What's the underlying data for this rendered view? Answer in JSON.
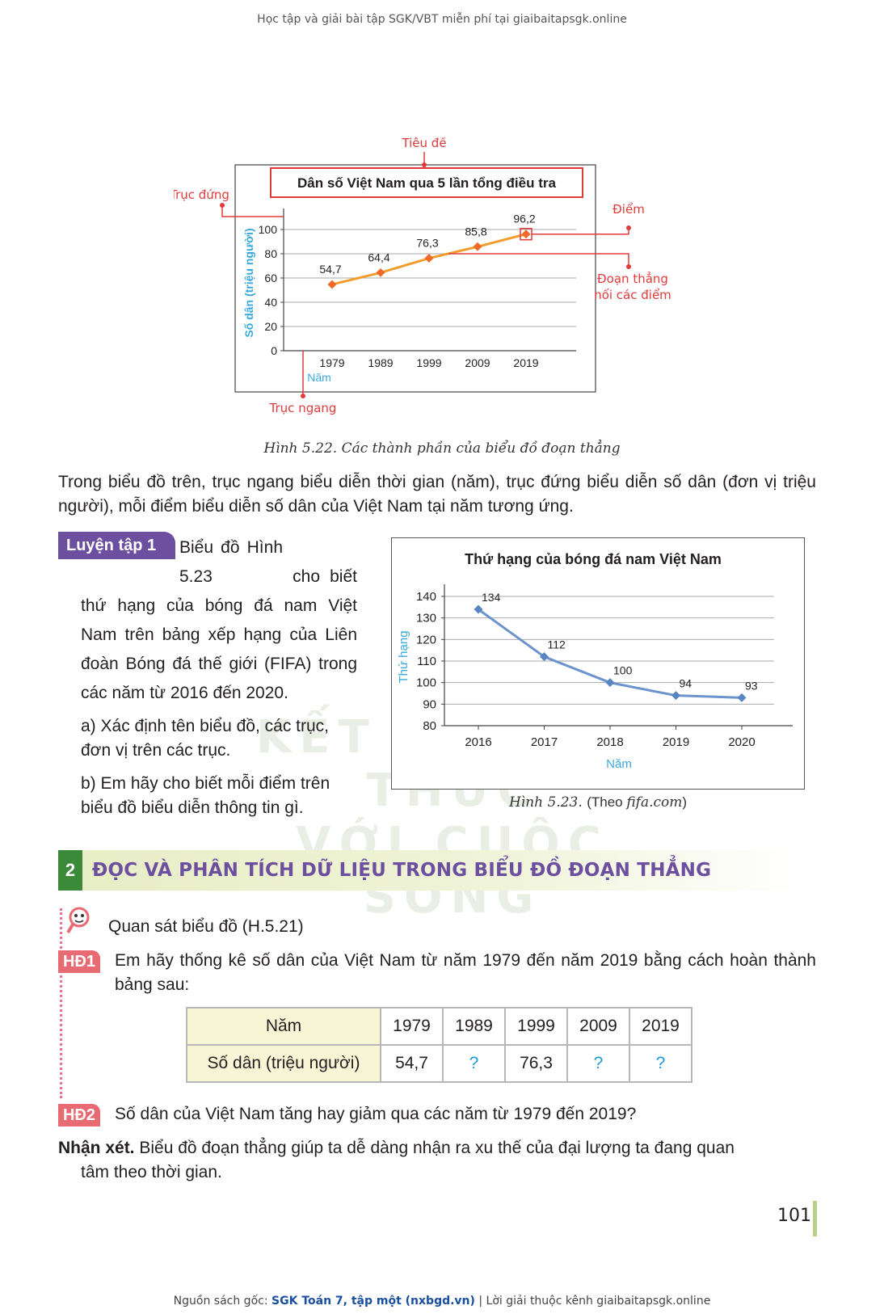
{
  "header": {
    "note": "Học tập và giải bài tập SGK/VBT miễn phí tại giaibaitapsgk.online"
  },
  "figure_522": {
    "labels": {
      "title_tag": "Tiêu đề",
      "y_axis_tag": "Trục đứng",
      "x_axis_tag": "Trục ngang",
      "point_tag": "Điểm",
      "segment_tag_line1": "Đoạn thẳng",
      "segment_tag_line2": "nối các điểm"
    },
    "caption": "Hình 5.22. Các thành phần của biểu đồ đoạn thẳng"
  },
  "intro_text": "Trong biểu đồ trên, trục ngang biểu diễn thời gian (năm), trục đứng biểu diễn số dân (đơn vị triệu người), mỗi điểm biểu diễn số dân của Việt Nam tại năm tương ứng.",
  "practice": {
    "badge": "Luyện tập 1",
    "first_words": "Biểu đồ Hình 5.23",
    "text": "cho biết thứ hạng của bóng đá nam Việt Nam trên bảng xếp hạng của Liên đoàn Bóng đá thế giới (FIFA) trong các năm từ 2016 đến 2020.",
    "a": "a) Xác định tên biểu đồ, các trục, đơn vị trên các trục.",
    "b": "b) Em hãy cho biết mỗi điểm trên biểu đồ biểu diễn thông tin gì."
  },
  "figure_523": {
    "caption_label": "Hình 5.23.",
    "caption_source_prefix": "(Theo ",
    "caption_source": "fifa.com",
    "caption_source_suffix": ")"
  },
  "watermark": {
    "line1": "KẾT NỐI TRI THỨC",
    "line2": "VỚI CUỘC SỐNG"
  },
  "section2": {
    "number": "2",
    "title": "ĐỌC VÀ PHÂN TÍCH DỮ LIỆU TRONG BIỂU ĐỒ ĐOẠN THẲNG"
  },
  "observe": "Quan sát biểu đồ (H.5.21)",
  "hd1": {
    "badge": "HĐ1",
    "text": "Em hãy thống kê số dân của Việt Nam từ năm 1979 đến năm 2019 bằng cách hoàn thành bảng sau:"
  },
  "table": {
    "row1_head": "Năm",
    "years": [
      "1979",
      "1989",
      "1999",
      "2009",
      "2019"
    ],
    "row2_head": "Số dân (triệu người)",
    "values": [
      "54,7",
      "?",
      "76,3",
      "?",
      "?"
    ]
  },
  "hd2": {
    "badge": "HĐ2",
    "text": "Số dân của Việt Nam tăng hay giảm qua các năm từ 1979 đến 2019?"
  },
  "remark": {
    "label": "Nhận xét.",
    "text_line1": "Biểu đồ đoạn thẳng giúp ta dễ dàng nhận ra xu thế của đại lượng ta đang quan",
    "text_line2": "tâm theo thời gian."
  },
  "page_number": "101",
  "footer": {
    "prefix": "Nguồn sách gốc: ",
    "source": "SGK Toán 7, tập một (nxbgd.vn)",
    "suffix": " | Lời giải thuộc kênh giaibaitapsgk.online"
  },
  "colors": {
    "orange_line": "#f39c2b",
    "orange_point": "#ee6b2a",
    "red_callout": "#e03b3b",
    "blue_line": "#6b93cd",
    "axis_label_blue": "#39a9dd",
    "purple": "#6d4fa0",
    "green": "#3a8a3a"
  },
  "chart_data": [
    {
      "type": "line",
      "title": "Dân số Việt Nam qua 5 lần tổng điều tra",
      "xlabel": "Năm",
      "ylabel": "Số dân (triệu người)",
      "x": [
        "1979",
        "1989",
        "1999",
        "2009",
        "2019"
      ],
      "series": [
        {
          "values": [
            54.7,
            64.4,
            76.3,
            85.8,
            96.2
          ]
        }
      ],
      "data_labels": [
        "54,7",
        "64,4",
        "76,3",
        "85,8",
        "96,2"
      ],
      "ylim": [
        0,
        100
      ],
      "yticks": [
        "0",
        "20",
        "40",
        "60",
        "80",
        "100"
      ],
      "grid": true
    },
    {
      "type": "line",
      "title": "Thứ hạng của bóng đá nam Việt Nam",
      "xlabel": "Năm",
      "ylabel": "Thứ hạng",
      "x": [
        "2016",
        "2017",
        "2018",
        "2019",
        "2020"
      ],
      "series": [
        {
          "values": [
            134,
            112,
            100,
            94,
            93
          ]
        }
      ],
      "data_labels": [
        "134",
        "112",
        "100",
        "94",
        "93"
      ],
      "ylim": [
        80,
        140
      ],
      "yticks": [
        "80",
        "90",
        "100",
        "110",
        "120",
        "130",
        "140"
      ],
      "grid": true
    }
  ]
}
